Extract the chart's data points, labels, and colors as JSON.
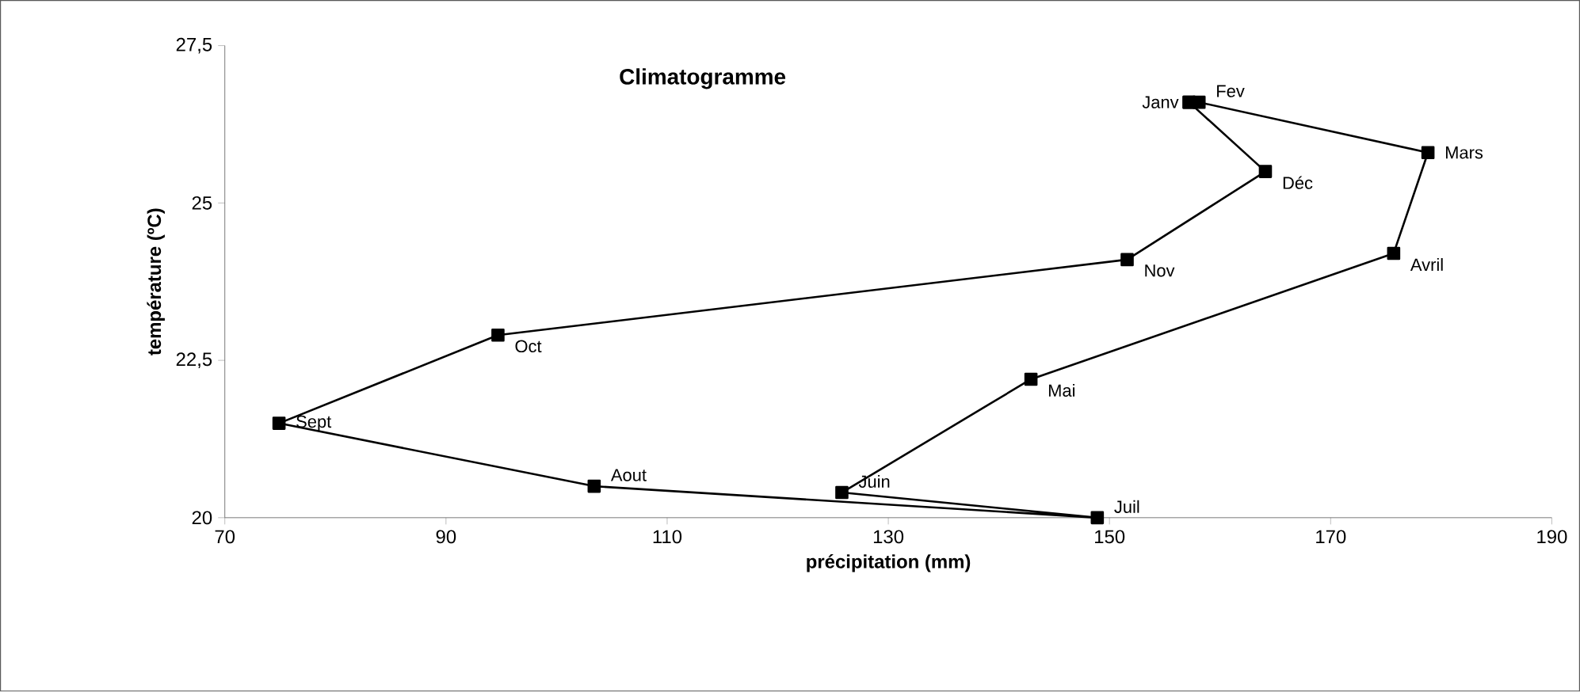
{
  "chart_data": {
    "type": "scatter",
    "title": "Climatogramme",
    "xlabel": "précipitation (mm)",
    "ylabel": "température (ºC)",
    "x": [
      157.2,
      158.1,
      178.8,
      175.7,
      142.9,
      125.8,
      148.9,
      103.4,
      74.9,
      94.7,
      151.6,
      164.1
    ],
    "values": [
      26.6,
      26.6,
      25.8,
      24.2,
      22.2,
      20.4,
      20.0,
      20.5,
      21.5,
      22.9,
      24.1,
      25.5
    ],
    "color": "#000000",
    "marker": "square",
    "line_style": "solid",
    "grid": false,
    "xlim": [
      70,
      190
    ],
    "xticks": [
      70,
      90,
      110,
      130,
      150,
      170,
      190
    ],
    "ylim": [
      20,
      27.5
    ],
    "yticks": [
      20,
      {
        "value": 22.5,
        "label": "22,5"
      },
      25,
      {
        "value": 27.5,
        "label": "27,5"
      }
    ],
    "annotations": [
      {
        "text": "Janv",
        "x": 157.2,
        "y": 26.6
      },
      {
        "text": "Fev",
        "x": 158.1,
        "y": 26.6
      },
      {
        "text": "Mars",
        "x": 178.8,
        "y": 25.8
      },
      {
        "text": "Avril",
        "x": 175.7,
        "y": 24.2
      },
      {
        "text": "Mai",
        "x": 142.9,
        "y": 22.2
      },
      {
        "text": "Juin",
        "x": 125.8,
        "y": 20.4
      },
      {
        "text": "Juil",
        "x": 148.9,
        "y": 20.0
      },
      {
        "text": "Aout",
        "x": 103.4,
        "y": 20.5
      },
      {
        "text": "Sept",
        "x": 74.9,
        "y": 21.5
      },
      {
        "text": "Oct",
        "x": 94.7,
        "y": 22.9
      },
      {
        "text": "Nov",
        "x": 151.6,
        "y": 24.1
      },
      {
        "text": "Déc",
        "x": 164.1,
        "y": 25.5
      }
    ]
  }
}
